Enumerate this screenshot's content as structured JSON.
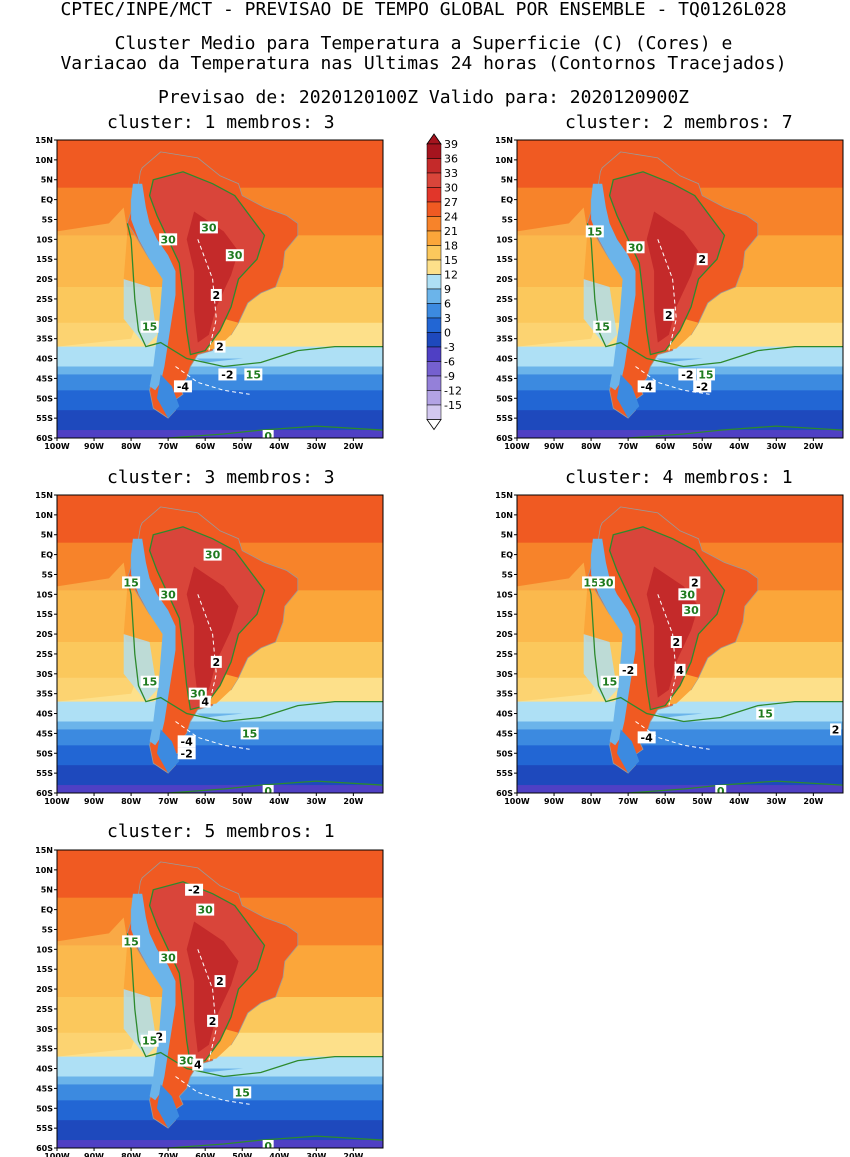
{
  "header": {
    "line1": "CPTEC/INPE/MCT - PREVISAO DE TEMPO GLOBAL POR ENSEMBLE - TQ0126L028",
    "line2": "Cluster Medio para Temperatura a Superficie (C) (Cores) e",
    "line3": "Variacao da Temperatura nas Ultimas 24 horas (Contornos Tracejados)",
    "line4": "Previsao de: 2020120100Z   Valido para: 2020120900Z"
  },
  "axes": {
    "lat_labels": [
      "15N",
      "10N",
      "5N",
      "EQ",
      "5S",
      "10S",
      "15S",
      "20S",
      "25S",
      "30S",
      "35S",
      "40S",
      "45S",
      "50S",
      "55S",
      "60S"
    ],
    "lon_labels": [
      "100W",
      "90W",
      "80W",
      "70W",
      "60W",
      "50W",
      "40W",
      "30W",
      "20W"
    ]
  },
  "colorbar": {
    "labels": [
      "39",
      "36",
      "33",
      "30",
      "27",
      "24",
      "21",
      "18",
      "15",
      "12",
      "9",
      "6",
      "3",
      "0",
      "-3",
      "-6",
      "-9",
      "-12",
      "-15"
    ],
    "colors": [
      "#a5141e",
      "#c42a2a",
      "#d9453a",
      "#e1362a",
      "#f05a22",
      "#f7832a",
      "#fba63a",
      "#fbc85c",
      "#fde08a",
      "#aee0f5",
      "#6bb4ea",
      "#3c8ae0",
      "#2266d4",
      "#1e49bd",
      "#4f40c4",
      "#7560cf",
      "#9480d9",
      "#b3a3e5",
      "#d3c8f0"
    ]
  },
  "panels": [
    {
      "title": "cluster: 1   membros: 3",
      "labels": [
        {
          "t": "30",
          "g": true,
          "lon": -59,
          "lat": -7
        },
        {
          "t": "30",
          "g": true,
          "lon": -70,
          "lat": -10
        },
        {
          "t": "30",
          "g": true,
          "lon": -52,
          "lat": -14
        },
        {
          "t": "15",
          "g": true,
          "lon": -75,
          "lat": -32
        },
        {
          "t": "15",
          "g": true,
          "lon": -47,
          "lat": -44
        },
        {
          "t": "0",
          "g": true,
          "lon": -43,
          "lat": -59.5
        },
        {
          "t": "2",
          "g": false,
          "lon": -57,
          "lat": -24
        },
        {
          "t": "2",
          "g": false,
          "lon": -56,
          "lat": -37
        },
        {
          "t": "-4",
          "g": false,
          "lon": -66,
          "lat": -47
        },
        {
          "t": "-2",
          "g": false,
          "lon": -54,
          "lat": -44
        }
      ]
    },
    {
      "title": "cluster: 2   membros: 7",
      "labels": [
        {
          "t": "15",
          "g": true,
          "lon": -79,
          "lat": -8
        },
        {
          "t": "30",
          "g": true,
          "lon": -68,
          "lat": -12
        },
        {
          "t": "15",
          "g": true,
          "lon": -77,
          "lat": -32
        },
        {
          "t": "15",
          "g": true,
          "lon": -49,
          "lat": -44
        },
        {
          "t": "2",
          "g": false,
          "lon": -50,
          "lat": -15
        },
        {
          "t": "2",
          "g": false,
          "lon": -59,
          "lat": -29
        },
        {
          "t": "-4",
          "g": false,
          "lon": -65,
          "lat": -47
        },
        {
          "t": "-2",
          "g": false,
          "lon": -54,
          "lat": -44
        },
        {
          "t": "-2",
          "g": false,
          "lon": -50,
          "lat": -47
        }
      ]
    },
    {
      "title": "cluster: 3   membros: 3",
      "labels": [
        {
          "t": "30",
          "g": true,
          "lon": -58,
          "lat": 0
        },
        {
          "t": "15",
          "g": true,
          "lon": -80,
          "lat": -7
        },
        {
          "t": "30",
          "g": true,
          "lon": -70,
          "lat": -10
        },
        {
          "t": "15",
          "g": true,
          "lon": -75,
          "lat": -32
        },
        {
          "t": "15",
          "g": true,
          "lon": -48,
          "lat": -45
        },
        {
          "t": "0",
          "g": true,
          "lon": -43,
          "lat": -59.5
        },
        {
          "t": "30",
          "g": true,
          "lon": -62,
          "lat": -35
        },
        {
          "t": "4",
          "g": false,
          "lon": -60,
          "lat": -37
        },
        {
          "t": "2",
          "g": false,
          "lon": -57,
          "lat": -27
        },
        {
          "t": "-4",
          "g": false,
          "lon": -65,
          "lat": -47
        },
        {
          "t": "-2",
          "g": false,
          "lon": -65,
          "lat": -50
        }
      ]
    },
    {
      "title": "cluster: 4   membros: 1",
      "labels": [
        {
          "t": "15",
          "g": true,
          "lon": -80,
          "lat": -7
        },
        {
          "t": "30",
          "g": true,
          "lon": -76,
          "lat": -7
        },
        {
          "t": "2",
          "g": false,
          "lon": -52,
          "lat": -7
        },
        {
          "t": "30",
          "g": true,
          "lon": -54,
          "lat": -10
        },
        {
          "t": "30",
          "g": true,
          "lon": -53,
          "lat": -14
        },
        {
          "t": "2",
          "g": false,
          "lon": -57,
          "lat": -22
        },
        {
          "t": "4",
          "g": false,
          "lon": -56,
          "lat": -29
        },
        {
          "t": "-2",
          "g": false,
          "lon": -70,
          "lat": -29
        },
        {
          "t": "15",
          "g": true,
          "lon": -75,
          "lat": -32
        },
        {
          "t": "15",
          "g": true,
          "lon": -33,
          "lat": -40
        },
        {
          "t": "2",
          "g": false,
          "lon": -14,
          "lat": -44
        },
        {
          "t": "-4",
          "g": false,
          "lon": -65,
          "lat": -46
        },
        {
          "t": "0",
          "g": true,
          "lon": -45,
          "lat": -59.5
        }
      ]
    },
    {
      "title": "cluster: 5   membros: 1",
      "labels": [
        {
          "t": "-2",
          "g": false,
          "lon": -63,
          "lat": 5
        },
        {
          "t": "30",
          "g": true,
          "lon": -60,
          "lat": 0
        },
        {
          "t": "15",
          "g": true,
          "lon": -80,
          "lat": -8
        },
        {
          "t": "30",
          "g": true,
          "lon": -70,
          "lat": -12
        },
        {
          "t": "2",
          "g": false,
          "lon": -56,
          "lat": -18
        },
        {
          "t": "2",
          "g": false,
          "lon": -58,
          "lat": -28
        },
        {
          "t": "-2",
          "g": false,
          "lon": -73,
          "lat": -32
        },
        {
          "t": "15",
          "g": true,
          "lon": -75,
          "lat": -33
        },
        {
          "t": "30",
          "g": true,
          "lon": -65,
          "lat": -38
        },
        {
          "t": "4",
          "g": false,
          "lon": -62,
          "lat": -39
        },
        {
          "t": "15",
          "g": true,
          "lon": -50,
          "lat": -46
        },
        {
          "t": "0",
          "g": true,
          "lon": -43,
          "lat": -59.5
        }
      ]
    }
  ]
}
